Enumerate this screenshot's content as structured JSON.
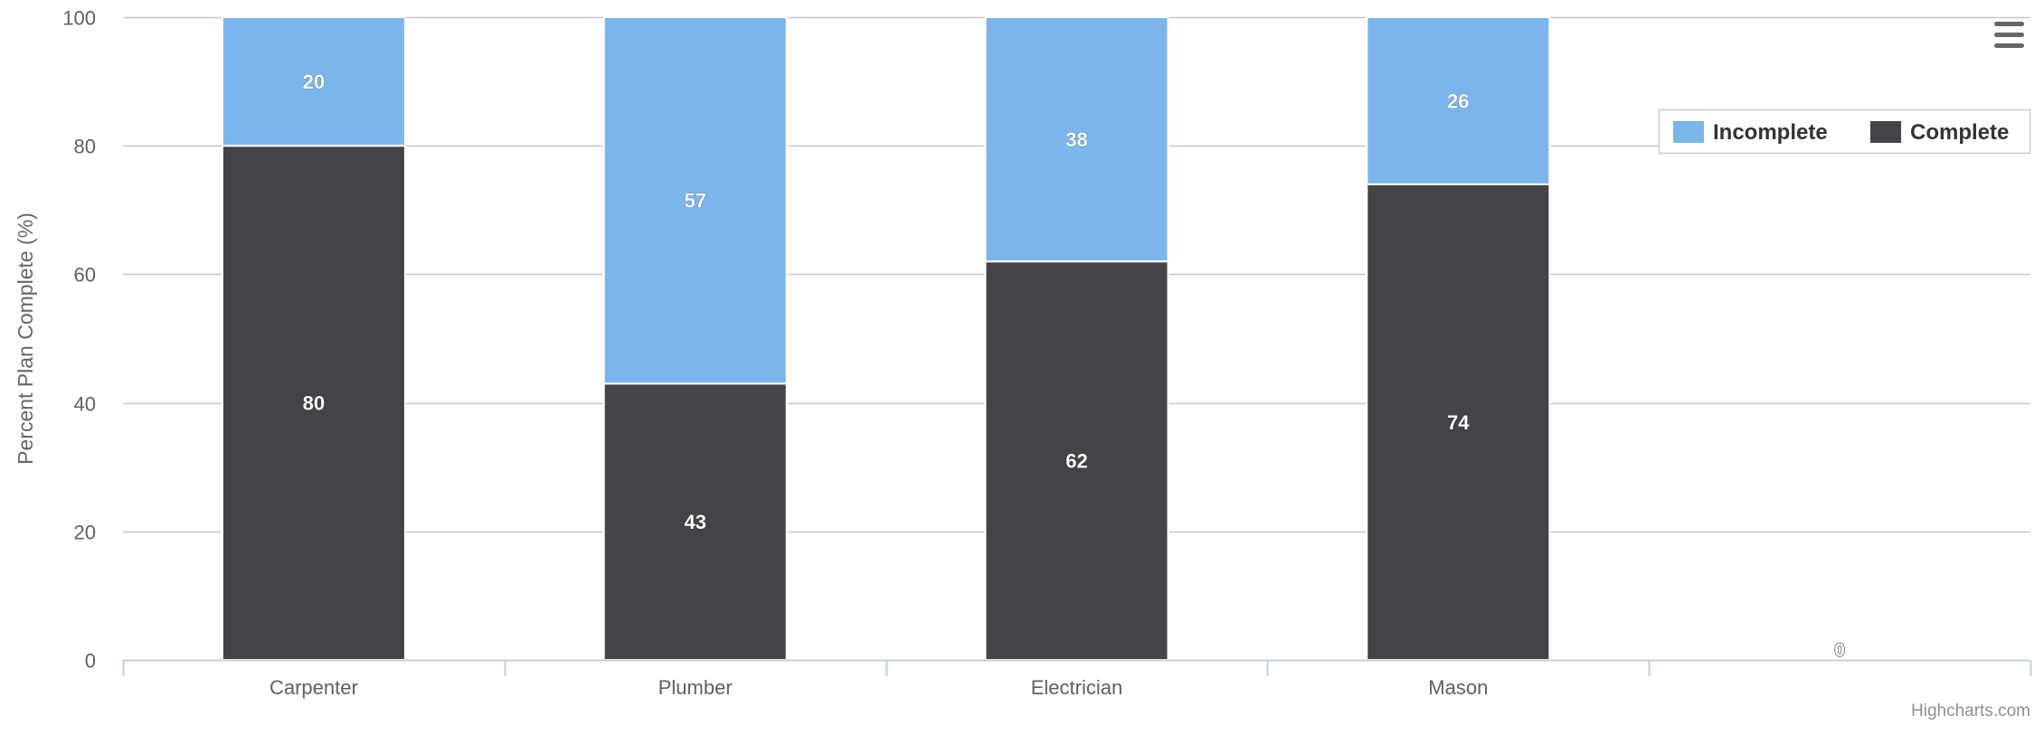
{
  "chart_data": {
    "type": "bar",
    "stacked": true,
    "title": "",
    "xlabel": "",
    "ylabel": "Percent Plan Complete (%)",
    "ylim": [
      0,
      100
    ],
    "yticks": [
      0,
      20,
      40,
      60,
      80,
      100
    ],
    "categories": [
      "Carpenter",
      "Plumber",
      "Electrician",
      "Mason",
      ""
    ],
    "series": [
      {
        "name": "Complete",
        "color": "#434348",
        "label_color": "#ffffff",
        "values": [
          80,
          43,
          62,
          74,
          0
        ]
      },
      {
        "name": "Incomplete",
        "color": "#7cb5ec",
        "label_color": "#ffffff",
        "values": [
          20,
          57,
          38,
          26,
          0
        ]
      }
    ],
    "legend": {
      "placement": "top-right",
      "order": [
        "Incomplete",
        "Complete"
      ]
    },
    "grid": true,
    "stray_label": "0"
  },
  "credits": "Highcharts.com",
  "menu_icon": "hamburger-menu-icon"
}
